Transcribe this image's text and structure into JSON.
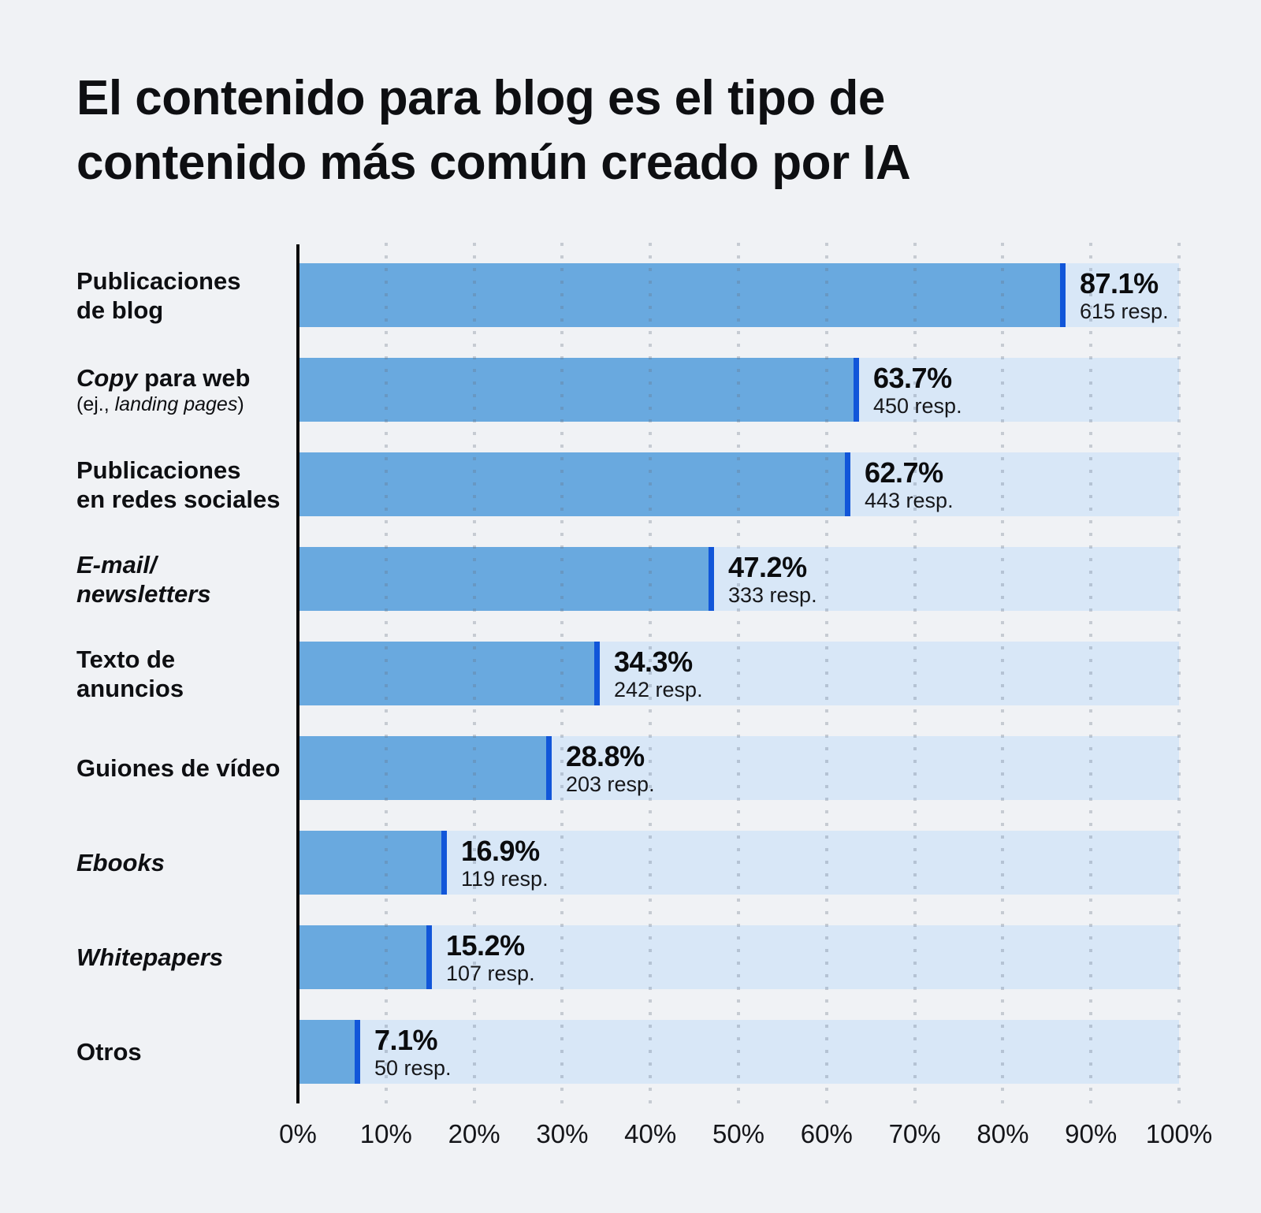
{
  "title_lines": [
    "El contenido para blog es el tipo de",
    "contenido más común creado por IA"
  ],
  "value_suffix": "resp.",
  "colors": {
    "background": "#f0f2f5",
    "bar_fill": "#69a9df",
    "bar_cap": "#1156d9",
    "bar_track": "#d8e7f7",
    "axis_line": "#0a0a0a",
    "text": "#0e0f12",
    "grid_dot": "#64707f"
  },
  "chart_data": {
    "type": "bar",
    "orientation": "horizontal",
    "title": "El contenido para blog es el tipo de contenido más común creado por IA",
    "categories": [
      "Publicaciones de blog",
      "Copy para web (ej., landing pages)",
      "Publicaciones en redes sociales",
      "E-mail/newsletters",
      "Texto de anuncios",
      "Guiones de vídeo",
      "Ebooks",
      "Whitepapers",
      "Otros"
    ],
    "values": [
      87.1,
      63.7,
      62.7,
      47.2,
      34.3,
      28.8,
      16.9,
      15.2,
      7.1
    ],
    "responses": [
      615,
      450,
      443,
      333,
      242,
      203,
      119,
      107,
      50
    ],
    "value_labels": [
      "87.1%",
      "63.7%",
      "62.7%",
      "47.2%",
      "34.3%",
      "28.8%",
      "16.9%",
      "15.2%",
      "7.1%"
    ],
    "response_labels": [
      "615 resp.",
      "450 resp.",
      "443 resp.",
      "333 resp.",
      "242 resp.",
      "203 resp.",
      "119 resp.",
      "107 resp.",
      "50 resp."
    ],
    "xlabel": "",
    "ylabel": "",
    "xlim": [
      0,
      100
    ],
    "x_tick_labels": [
      "0%",
      "10%",
      "20%",
      "30%",
      "40%",
      "50%",
      "60%",
      "70%",
      "80%",
      "90%",
      "100%"
    ],
    "grid": "dotted-vertical",
    "legend": "none"
  },
  "rows": [
    {
      "pct_label": "87.1%",
      "resp_label": "615 resp.",
      "value": 87.1,
      "label_lines": [
        [
          {
            "t": "Publicaciones"
          }
        ],
        [
          {
            "t": "de blog"
          }
        ]
      ]
    },
    {
      "pct_label": "63.7%",
      "resp_label": "450 resp.",
      "value": 63.7,
      "label_lines": [
        [
          {
            "t": "Copy",
            "i": true
          },
          {
            "t": " para web"
          }
        ],
        [
          {
            "t": "(ej., ",
            "sm": true
          },
          {
            "t": "landing pages",
            "sm": true,
            "i": true
          },
          {
            "t": ")",
            "sm": true
          }
        ]
      ]
    },
    {
      "pct_label": "62.7%",
      "resp_label": "443 resp.",
      "value": 62.7,
      "label_lines": [
        [
          {
            "t": "Publicaciones"
          }
        ],
        [
          {
            "t": "en redes sociales"
          }
        ]
      ]
    },
    {
      "pct_label": "47.2%",
      "resp_label": "333 resp.",
      "value": 47.2,
      "label_lines": [
        [
          {
            "t": "E-mail/",
            "i": true
          }
        ],
        [
          {
            "t": "newsletters",
            "i": true
          }
        ]
      ]
    },
    {
      "pct_label": "34.3%",
      "resp_label": "242 resp.",
      "value": 34.3,
      "label_lines": [
        [
          {
            "t": "Texto de"
          }
        ],
        [
          {
            "t": "anuncios"
          }
        ]
      ]
    },
    {
      "pct_label": "28.8%",
      "resp_label": "203 resp.",
      "value": 28.8,
      "label_lines": [
        [
          {
            "t": "Guiones de vídeo"
          }
        ]
      ]
    },
    {
      "pct_label": "16.9%",
      "resp_label": "119 resp.",
      "value": 16.9,
      "label_lines": [
        [
          {
            "t": "Ebooks",
            "i": true
          }
        ]
      ]
    },
    {
      "pct_label": "15.2%",
      "resp_label": "107 resp.",
      "value": 15.2,
      "label_lines": [
        [
          {
            "t": "Whitepapers",
            "i": true
          }
        ]
      ]
    },
    {
      "pct_label": "7.1%",
      "resp_label": "50 resp.",
      "value": 7.1,
      "label_lines": [
        [
          {
            "t": "Otros"
          }
        ]
      ]
    }
  ]
}
